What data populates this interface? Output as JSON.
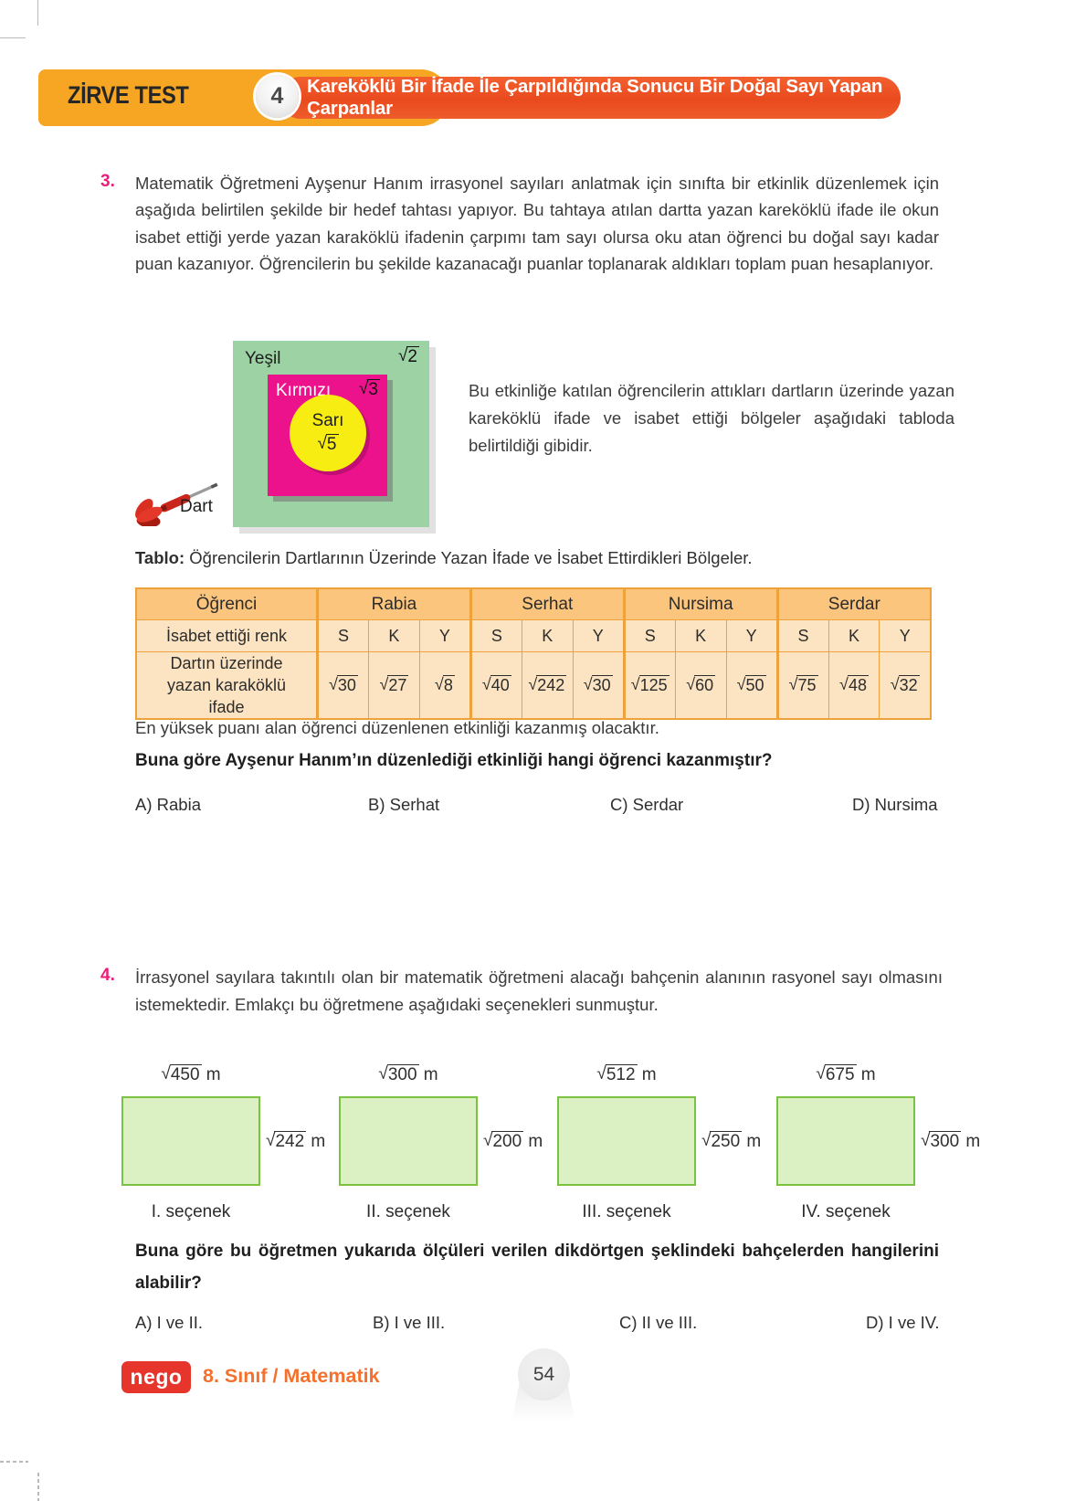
{
  "header": {
    "test_label": "ZİRVE TEST",
    "test_number": "4",
    "title": "Kareköklü Bir İfade İle Çarpıldığında Sonucu Bir Doğal Sayı Yapan Çarpanlar"
  },
  "q3": {
    "number": "3.",
    "text": "Matematik Öğretmeni Ayşenur Hanım irrasyonel sayıları anlatmak için sınıfta bir etkinlik düzenlemek için aşağıda belirtilen şekilde bir hedef tahtası yapıyor. Bu tahtaya atılan dartta yazan kareköklü ifade ile okun isabet ettiği yerde yazan karaköklü ifadenin çarpımı tam sayı olursa oku atan öğrenci bu doğal sayı kadar puan kazanıyor. Öğrencilerin bu şekilde kazanacağı puanlar toplanarak aldıkları toplam puan hesaplanıyor.",
    "board": {
      "green_label": "Yeşil",
      "green_radicand": "2",
      "red_label": "Kırmızı",
      "red_radicand": "3",
      "yellow_label": "Sarı",
      "yellow_radicand": "5",
      "dart_label": "Dart"
    },
    "side_text": "Bu etkinliğe katılan öğrencilerin attıkları dartların üzerinde yazan kareköklü ifade ve isabet ettiği bölgeler aşağıdaki  tabloda belirtildiği gibidir.",
    "table_caption_bold": "Tablo:",
    "table_caption": " Öğrencilerin Dartlarının Üzerinde Yazan İfade ve İsabet Ettirdikleri Bölgeler.",
    "table": {
      "col1_header": "Öğrenci",
      "row2_header": "İsabet ettiği renk",
      "row3_header": "Dartın üzerinde yazan karaköklü ifade",
      "students": [
        {
          "name": "Rabia",
          "colors": [
            "S",
            "K",
            "Y"
          ],
          "radicands": [
            "30",
            "27",
            "8"
          ]
        },
        {
          "name": "Serhat",
          "colors": [
            "S",
            "K",
            "Y"
          ],
          "radicands": [
            "40",
            "242",
            "30"
          ]
        },
        {
          "name": "Nursima",
          "colors": [
            "S",
            "K",
            "Y"
          ],
          "radicands": [
            "125",
            "60",
            "50"
          ]
        },
        {
          "name": "Serdar",
          "colors": [
            "S",
            "K",
            "Y"
          ],
          "radicands": [
            "75",
            "48",
            "32"
          ]
        }
      ]
    },
    "note": "En yüksek puanı alan öğrenci düzenlenen etkinliği kazanmış olacaktır.",
    "question": "Buna göre Ayşenur Hanım’ın düzenlediği etkinliği hangi öğrenci kazanmıştır?",
    "choices": [
      "A) Rabia",
      "B) Serhat",
      "C) Serdar",
      "D) Nursima"
    ]
  },
  "q4": {
    "number": "4.",
    "text": "İrrasyonel sayılara takıntılı olan bir matematik öğretmeni alacağı bahçenin alanının rasyonel sayı olmasını istemektedir. Emlakçı bu öğretmene aşağıdaki seçenekleri sunmuştur.",
    "unit": "m",
    "options": [
      {
        "label": "I. seçenek",
        "top_radicand": "450",
        "right_radicand": "242"
      },
      {
        "label": "II. seçenek",
        "top_radicand": "300",
        "right_radicand": "200"
      },
      {
        "label": "III. seçenek",
        "top_radicand": "512",
        "right_radicand": "250"
      },
      {
        "label": "IV. seçenek",
        "top_radicand": "675",
        "right_radicand": "300"
      }
    ],
    "question": "Buna göre bu öğretmen yukarıda ölçüleri verilen dikdörtgen şeklindeki bahçelerden hangilerini alabilir?",
    "choices": [
      "A) I ve II.",
      "B) I ve III.",
      "C) II ve III.",
      "D) I ve IV."
    ]
  },
  "footer": {
    "logo_text": "nego",
    "series_title": "8. Sınıf / Matematik",
    "page_number": "54"
  },
  "colors": {
    "header_yellow": "#f7a623",
    "header_red": "#ea4a1e",
    "question_number_pink": "#ed1e79",
    "table_header_bg": "#fbc57d",
    "table_cell_bg": "#fce4c2",
    "table_border": "#efa23c",
    "board_green": "#9dd2a5",
    "board_magenta": "#ec128b",
    "board_yellow": "#f7ed12",
    "garden_fill": "#dbf0c3",
    "garden_border": "#7cc242",
    "logo_red": "#e6352b",
    "footer_orange": "#f4702c"
  }
}
